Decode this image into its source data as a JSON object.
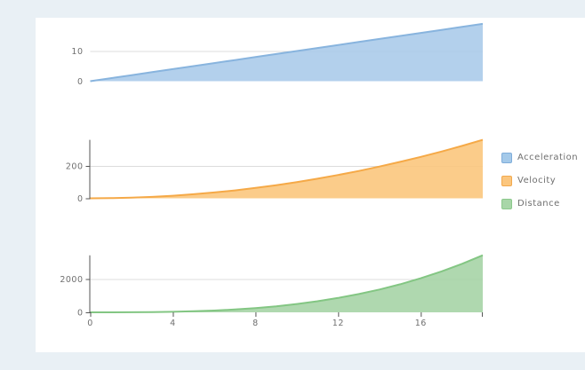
{
  "page": {
    "background_color": "#e9f0f5",
    "panel_background_color": "#ffffff"
  },
  "legend": {
    "position": "right",
    "items": [
      {
        "label": "Acceleration",
        "fill": "#a4c9e9",
        "border": "#7fadda"
      },
      {
        "label": "Velocity",
        "fill": "#fbc67e",
        "border": "#f2a94e"
      },
      {
        "label": "Distance",
        "fill": "#a8d6a8",
        "border": "#8cc98c"
      }
    ]
  },
  "chart_data": [
    {
      "type": "area",
      "title": "Acceleration",
      "xlabel": "",
      "ylabel": "",
      "x": [
        0,
        1,
        2,
        3,
        4,
        5,
        6,
        7,
        8,
        9,
        10,
        11,
        12,
        13,
        14,
        15,
        16,
        17,
        18,
        19
      ],
      "values": [
        0,
        1,
        2,
        3,
        4,
        5,
        6,
        7,
        8,
        9,
        10,
        11,
        12,
        13,
        14,
        15,
        16,
        17,
        18,
        19
      ],
      "xlim": [
        0,
        19
      ],
      "ylim": [
        0,
        19
      ],
      "y_ticks": [
        0,
        10
      ],
      "gridlines": [
        10
      ],
      "show_y_axis_line": false,
      "show_x_axis_labels": false,
      "fill_color": "#a9cae9",
      "stroke_color": "#88b4de"
    },
    {
      "type": "area",
      "title": "Velocity",
      "xlabel": "",
      "ylabel": "",
      "x": [
        0,
        1,
        2,
        3,
        4,
        5,
        6,
        7,
        8,
        9,
        10,
        11,
        12,
        13,
        14,
        15,
        16,
        17,
        18,
        19
      ],
      "values": [
        0,
        1,
        4,
        9,
        16,
        25,
        36,
        49,
        64,
        81,
        100,
        121,
        144,
        169,
        196,
        225,
        256,
        289,
        324,
        361
      ],
      "xlim": [
        0,
        19
      ],
      "ylim": [
        0,
        361
      ],
      "y_ticks": [
        0,
        200
      ],
      "gridlines": [
        200
      ],
      "show_y_axis_line": true,
      "show_x_axis_labels": false,
      "fill_color": "#fac57a",
      "stroke_color": "#f5a947"
    },
    {
      "type": "area",
      "title": "Distance",
      "xlabel": "",
      "ylabel": "",
      "x": [
        0,
        1,
        2,
        3,
        4,
        5,
        6,
        7,
        8,
        9,
        10,
        11,
        12,
        13,
        14,
        15,
        16,
        17,
        18,
        19
      ],
      "values": [
        0,
        0.5,
        4,
        13.5,
        32,
        62.5,
        108,
        171.5,
        256,
        364.5,
        500,
        665.5,
        864,
        1098.5,
        1372,
        1687.5,
        2048,
        2456.5,
        2916,
        3429.5
      ],
      "xlim": [
        0,
        19
      ],
      "ylim": [
        0,
        3429.5
      ],
      "y_ticks": [
        0,
        2000
      ],
      "gridlines": [
        2000
      ],
      "x_ticks": [
        0,
        4,
        8,
        12,
        16
      ],
      "show_y_axis_line": true,
      "show_x_axis_labels": true,
      "fill_color": "#a4d3a4",
      "stroke_color": "#83c683"
    }
  ],
  "style": {
    "grid_color": "#dcdcdc",
    "axis_color": "#555555",
    "tick_label_color": "#6f6f6f"
  }
}
